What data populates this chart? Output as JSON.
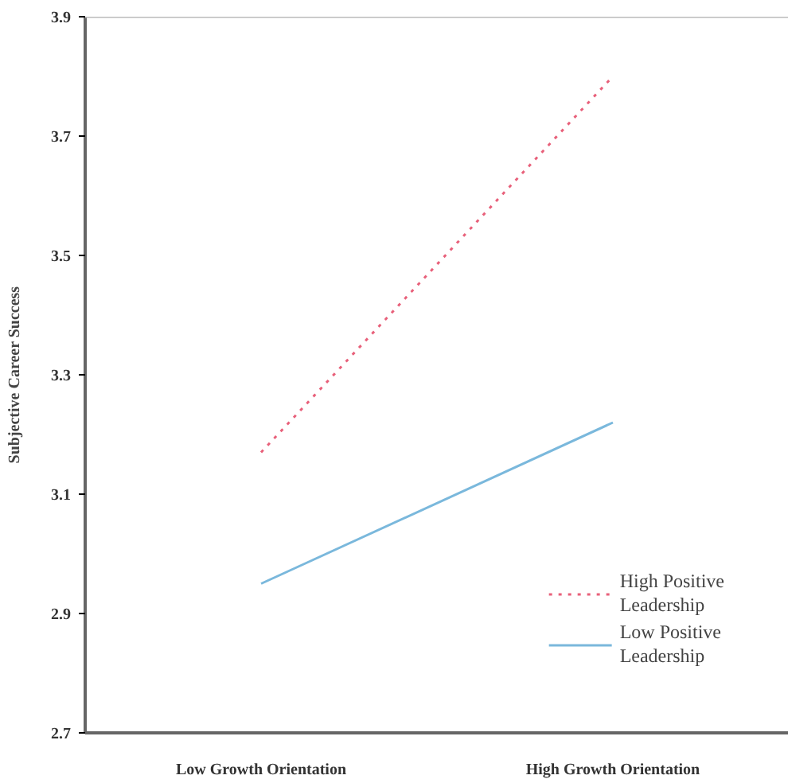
{
  "chart_data": {
    "type": "line",
    "ylabel": "Subjective Career Success",
    "categories": [
      "Low Growth Orientation",
      "High Growth Orientation"
    ],
    "series": [
      {
        "name": "High Positive Leadership",
        "color": "#e8607a",
        "values": [
          3.17,
          3.8
        ],
        "line_style": "dotted"
      },
      {
        "name": "Low Positive Leadership",
        "color": "#7ab8dc",
        "values": [
          2.95,
          3.22
        ],
        "line_style": "solid"
      }
    ],
    "ylim": [
      2.7,
      3.9
    ],
    "yticks": [
      2.7,
      2.9,
      3.1,
      3.3,
      3.5,
      3.7,
      3.9
    ],
    "grid": false,
    "legend": "bottom right",
    "marker": "none"
  }
}
